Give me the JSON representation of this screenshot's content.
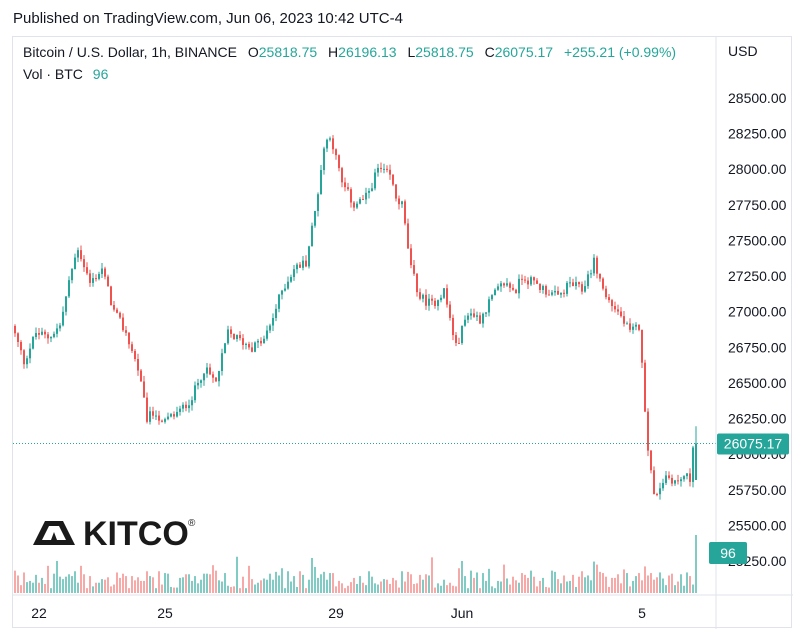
{
  "published_text": "Published on TradingView.com, Jun 06, 2023 10:42 UTC-4",
  "logo_text": "KITCO",
  "logo_mark": "®",
  "legend": {
    "symbol": "Bitcoin / U.S. Dollar, 1h, BINANCE",
    "o_label": "O",
    "o_value": "25818.75",
    "h_label": "H",
    "h_value": "26196.13",
    "l_label": "L",
    "l_value": "25818.75",
    "c_label": "C",
    "c_value": "26075.17",
    "change": "+255.21 (+0.99%)",
    "vol_label": "Vol · BTC",
    "vol_value": "96"
  },
  "price_axis": {
    "currency": "USD",
    "last_price_label": "26075.17",
    "last_volume_label": "96"
  },
  "colors": {
    "up": "#26a69a",
    "down": "#ef5350",
    "vol_up": "#80cbc4",
    "vol_down": "#f7a9a7",
    "last_line": "#26a69a"
  },
  "chart_data": {
    "type": "candlestick",
    "symbol": "Bitcoin / U.S. Dollar",
    "interval": "1h",
    "exchange": "BINANCE",
    "ylim": [
      25150,
      28600
    ],
    "y_ticks": [
      25250,
      25500,
      25750,
      26000,
      26250,
      26500,
      26750,
      27000,
      27250,
      27500,
      27750,
      28000,
      28250,
      28500
    ],
    "y_tick_labels": [
      "25250.00",
      "25500.00",
      "25750.00",
      "26000.00",
      "26250.00",
      "26500.00",
      "26750.00",
      "27000.00",
      "27250.00",
      "27500.00",
      "27750.00",
      "28000.00",
      "28250.00",
      "28500.00"
    ],
    "x_tick_labels": [
      "22",
      "25",
      "29",
      "Jun",
      "5"
    ],
    "x_tick_bar_index": [
      8,
      50,
      107,
      149,
      209
    ],
    "last": {
      "open": 25818.75,
      "high": 26196.13,
      "low": 25818.75,
      "close": 26075.17,
      "change": 255.21,
      "change_pct": 0.99,
      "volume": 96
    },
    "price_path": [
      [
        0,
        26900
      ],
      [
        4,
        26650
      ],
      [
        8,
        26850
      ],
      [
        12,
        26820
      ],
      [
        16,
        26900
      ],
      [
        20,
        27300
      ],
      [
        22,
        27450
      ],
      [
        26,
        27200
      ],
      [
        30,
        27300
      ],
      [
        34,
        27000
      ],
      [
        38,
        26850
      ],
      [
        42,
        26600
      ],
      [
        45,
        26250
      ],
      [
        48,
        26300
      ],
      [
        50,
        26200
      ],
      [
        52,
        26250
      ],
      [
        56,
        26300
      ],
      [
        60,
        26400
      ],
      [
        64,
        26600
      ],
      [
        68,
        26500
      ],
      [
        72,
        26850
      ],
      [
        76,
        26800
      ],
      [
        80,
        26750
      ],
      [
        84,
        26800
      ],
      [
        86,
        26900
      ],
      [
        90,
        27150
      ],
      [
        94,
        27300
      ],
      [
        98,
        27350
      ],
      [
        101,
        27700
      ],
      [
        104,
        28150
      ],
      [
        106,
        28250
      ],
      [
        110,
        27900
      ],
      [
        114,
        27750
      ],
      [
        118,
        27800
      ],
      [
        122,
        28000
      ],
      [
        126,
        27950
      ],
      [
        128,
        27800
      ],
      [
        130,
        27750
      ],
      [
        133,
        27300
      ],
      [
        136,
        27100
      ],
      [
        140,
        27050
      ],
      [
        144,
        27150
      ],
      [
        148,
        26750
      ],
      [
        152,
        27000
      ],
      [
        156,
        26950
      ],
      [
        160,
        27100
      ],
      [
        164,
        27200
      ],
      [
        168,
        27150
      ],
      [
        170,
        27250
      ],
      [
        174,
        27200
      ],
      [
        178,
        27150
      ],
      [
        182,
        27100
      ],
      [
        186,
        27200
      ],
      [
        190,
        27150
      ],
      [
        194,
        27350
      ],
      [
        198,
        27100
      ],
      [
        202,
        27000
      ],
      [
        206,
        26850
      ],
      [
        209,
        26900
      ],
      [
        212,
        26050
      ],
      [
        214,
        25700
      ],
      [
        218,
        25850
      ],
      [
        222,
        25800
      ],
      [
        224,
        25850
      ],
      [
        226,
        25820
      ],
      [
        227,
        26075
      ]
    ]
  }
}
